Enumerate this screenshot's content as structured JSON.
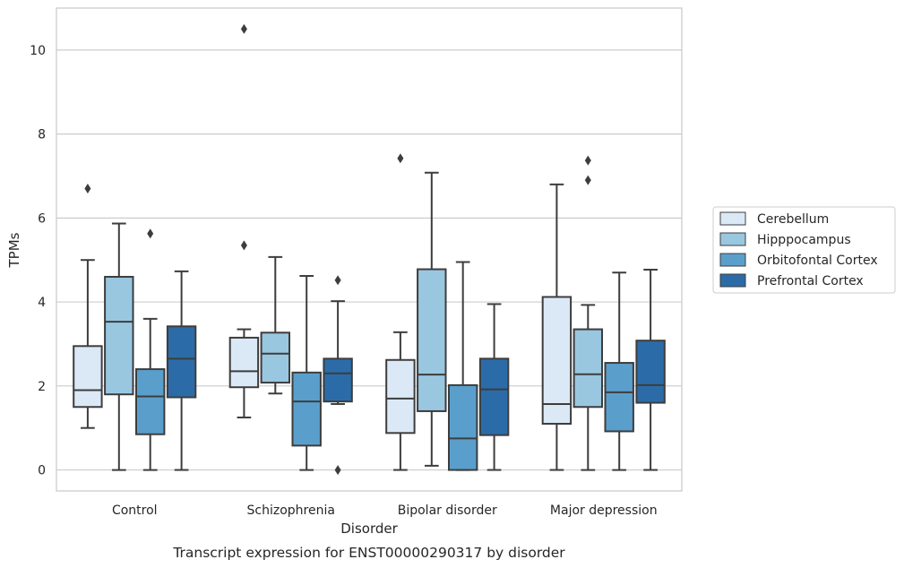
{
  "chart_data": {
    "type": "box",
    "title": "Transcript expression for ENST00000290317 by disorder",
    "xlabel": "Disorder",
    "ylabel": "TPMs",
    "ylim": [
      -0.5,
      11.0
    ],
    "yticks": [
      0,
      2,
      4,
      6,
      8,
      10
    ],
    "grid": true,
    "legend_position": "right",
    "categories": [
      "Control",
      "Schizophrenia",
      "Bipolar disorder",
      "Major depression"
    ],
    "series": [
      {
        "name": "Cerebellum",
        "color": "#dbe9f6",
        "boxes": [
          {
            "whisker_low": 1.0,
            "q1": 1.5,
            "median": 1.9,
            "q3": 2.95,
            "whisker_high": 5.0,
            "outliers": [
              6.7
            ]
          },
          {
            "whisker_low": 1.25,
            "q1": 1.97,
            "median": 2.35,
            "q3": 3.15,
            "whisker_high": 3.35,
            "outliers": [
              5.35,
              10.5
            ]
          },
          {
            "whisker_low": 0.0,
            "q1": 0.88,
            "median": 1.7,
            "q3": 2.62,
            "whisker_high": 3.28,
            "outliers": [
              7.42
            ]
          },
          {
            "whisker_low": 0.0,
            "q1": 1.1,
            "median": 1.57,
            "q3": 4.12,
            "whisker_high": 6.8,
            "outliers": []
          }
        ]
      },
      {
        "name": "Hipppocampus",
        "color": "#9ac7e0",
        "boxes": [
          {
            "whisker_low": 0.0,
            "q1": 1.8,
            "median": 3.53,
            "q3": 4.6,
            "whisker_high": 5.87,
            "outliers": []
          },
          {
            "whisker_low": 1.82,
            "q1": 2.08,
            "median": 2.77,
            "q3": 3.27,
            "whisker_high": 5.07,
            "outliers": []
          },
          {
            "whisker_low": 0.1,
            "q1": 1.4,
            "median": 2.27,
            "q3": 4.78,
            "whisker_high": 7.08,
            "outliers": []
          },
          {
            "whisker_low": 0.0,
            "q1": 1.5,
            "median": 2.28,
            "q3": 3.35,
            "whisker_high": 3.93,
            "outliers": [
              6.9,
              7.37
            ]
          }
        ]
      },
      {
        "name": "Orbitofontal Cortex",
        "color": "#5a9fcc",
        "boxes": [
          {
            "whisker_low": 0.0,
            "q1": 0.85,
            "median": 1.75,
            "q3": 2.4,
            "whisker_high": 3.6,
            "outliers": [
              5.63
            ]
          },
          {
            "whisker_low": 0.0,
            "q1": 0.58,
            "median": 1.63,
            "q3": 2.32,
            "whisker_high": 4.62,
            "outliers": []
          },
          {
            "whisker_low": 0.0,
            "q1": 0.0,
            "median": 0.75,
            "q3": 2.02,
            "whisker_high": 4.95,
            "outliers": []
          },
          {
            "whisker_low": 0.0,
            "q1": 0.92,
            "median": 1.85,
            "q3": 2.55,
            "whisker_high": 4.7,
            "outliers": []
          }
        ]
      },
      {
        "name": "Prefrontal Cortex",
        "color": "#2b6ca8",
        "boxes": [
          {
            "whisker_low": 0.0,
            "q1": 1.73,
            "median": 2.65,
            "q3": 3.42,
            "whisker_high": 4.73,
            "outliers": []
          },
          {
            "whisker_low": 1.57,
            "q1": 1.63,
            "median": 2.3,
            "q3": 2.65,
            "whisker_high": 4.02,
            "outliers": [
              0.0,
              4.52
            ]
          },
          {
            "whisker_low": 0.0,
            "q1": 0.83,
            "median": 1.92,
            "q3": 2.65,
            "whisker_high": 3.95,
            "outliers": []
          },
          {
            "whisker_low": 0.0,
            "q1": 1.6,
            "median": 2.02,
            "q3": 3.08,
            "whisker_high": 4.77,
            "outliers": []
          }
        ]
      }
    ]
  }
}
